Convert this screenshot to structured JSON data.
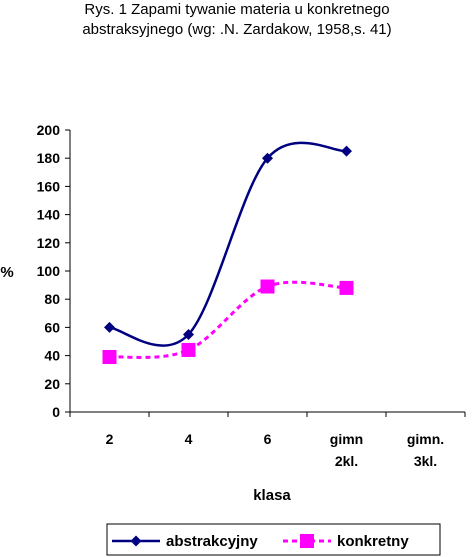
{
  "chart_data": {
    "type": "line",
    "title_lines": [
      "Rys. 1 Zapami tywanie materia u konkretnego",
      "abstraksyjnego (wg: .N. Zardakow, 1958,s. 41)"
    ],
    "xlabel": "klasa",
    "ylabel": "%",
    "categories": [
      [
        "2"
      ],
      [
        "4"
      ],
      [
        "6"
      ],
      [
        "gimn",
        "2kl."
      ],
      [
        "gimn.",
        "3kl."
      ]
    ],
    "yticks": [
      0,
      20,
      40,
      60,
      80,
      100,
      120,
      140,
      160,
      180,
      200
    ],
    "ylim": [
      0,
      200
    ],
    "grid": false,
    "legend_position": "bottom",
    "series": [
      {
        "name": "abstrakcyjny",
        "color": "#000080",
        "line_style": "solid",
        "marker": "diamond",
        "values": [
          60,
          55,
          180,
          185,
          null
        ]
      },
      {
        "name": "konkretny",
        "color": "#ff00ff",
        "line_style": "dashed",
        "marker": "square",
        "values": [
          39,
          44,
          89,
          88,
          null
        ]
      }
    ]
  }
}
